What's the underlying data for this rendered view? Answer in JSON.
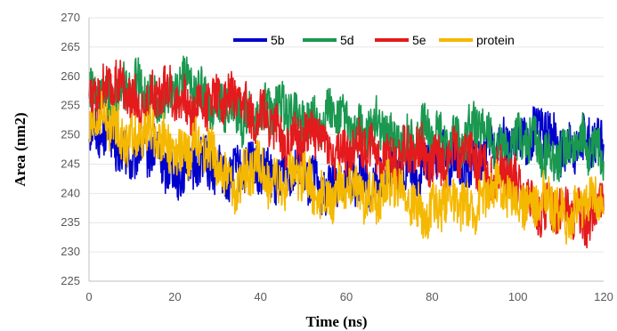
{
  "chart_data": {
    "type": "line",
    "title": "",
    "xlabel": "Time (ns)",
    "ylabel": "Area (nm2)",
    "xlim": [
      0,
      120
    ],
    "ylim": [
      225,
      270
    ],
    "x_ticks": [
      0,
      20,
      40,
      60,
      80,
      100,
      120
    ],
    "y_ticks": [
      225,
      230,
      235,
      240,
      245,
      250,
      255,
      260,
      265,
      270
    ],
    "grid": "horizontal",
    "legend_position": "top-inside",
    "series": [
      {
        "name": "5b",
        "color": "#0000cc",
        "x": [
          0,
          5,
          10,
          15,
          20,
          25,
          30,
          35,
          40,
          45,
          50,
          55,
          60,
          65,
          70,
          75,
          80,
          85,
          90,
          95,
          100,
          105,
          110,
          115,
          120
        ],
        "values": [
          250,
          249,
          247,
          246,
          245,
          244,
          245,
          243,
          244,
          244,
          243,
          242,
          241,
          243,
          242,
          244,
          246,
          245,
          246,
          247,
          250,
          250,
          249,
          248,
          248
        ],
        "amplitude": 4
      },
      {
        "name": "5d",
        "color": "#1a9850",
        "x": [
          0,
          5,
          10,
          15,
          20,
          25,
          30,
          35,
          40,
          45,
          50,
          55,
          60,
          65,
          70,
          75,
          80,
          85,
          90,
          95,
          100,
          105,
          110,
          115,
          120
        ],
        "values": [
          255,
          258,
          257,
          257,
          257,
          258,
          256,
          252,
          255,
          253,
          254,
          252,
          252,
          251,
          250,
          250,
          249,
          250,
          250,
          249,
          248,
          248,
          247,
          248,
          248
        ],
        "amplitude": 4
      },
      {
        "name": "5e",
        "color": "#e41a1c",
        "x": [
          0,
          5,
          10,
          15,
          20,
          25,
          30,
          35,
          40,
          45,
          50,
          55,
          60,
          65,
          70,
          75,
          80,
          85,
          90,
          95,
          100,
          105,
          110,
          115,
          120
        ],
        "values": [
          258,
          258,
          256,
          257,
          256,
          256,
          255,
          257,
          252,
          250,
          250,
          248,
          248,
          247,
          247,
          246,
          247,
          246,
          246,
          244,
          240,
          238,
          236,
          237,
          238
        ],
        "amplitude": 4
      },
      {
        "name": "protein",
        "color": "#f5b800",
        "x": [
          0,
          5,
          10,
          15,
          20,
          25,
          30,
          35,
          40,
          45,
          50,
          55,
          60,
          65,
          70,
          75,
          80,
          85,
          90,
          95,
          100,
          105,
          110,
          115,
          120
        ],
        "values": [
          251,
          251,
          250,
          249,
          248,
          247,
          246,
          241,
          244,
          242,
          242,
          240,
          240,
          240,
          241,
          239,
          237,
          238,
          239,
          240,
          240,
          238,
          237,
          238,
          238
        ],
        "amplitude": 4
      }
    ]
  }
}
